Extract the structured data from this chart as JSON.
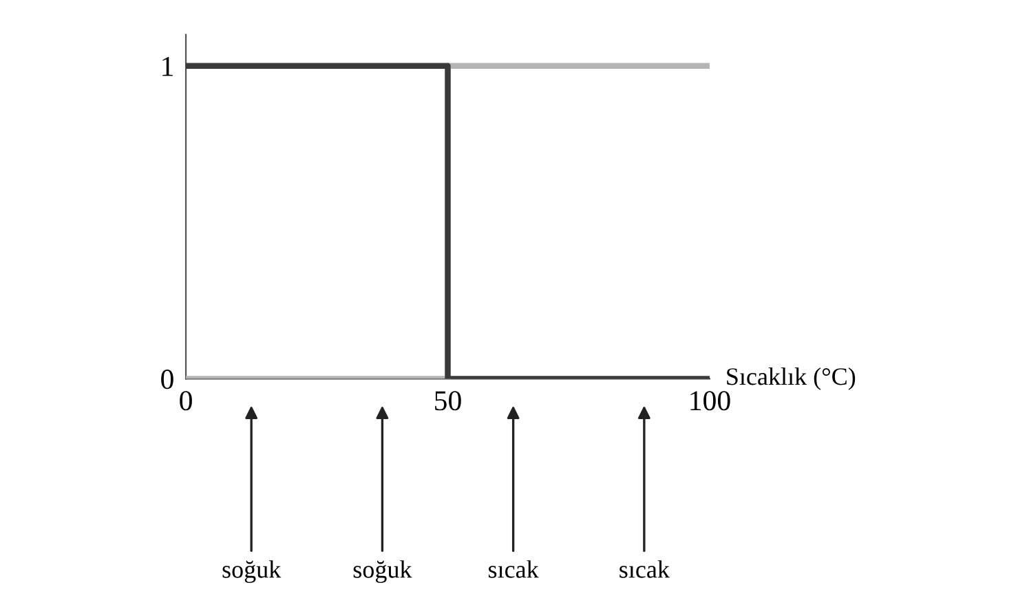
{
  "chart_data": {
    "type": "line",
    "xlabel": "Sıcaklık (°C)",
    "series": [
      {
        "x": [
          0,
          50,
          50,
          100
        ],
        "values": [
          1,
          1,
          0,
          0
        ],
        "color": "#3a3a3a"
      },
      {
        "x": [
          0,
          50,
          50,
          100
        ],
        "values": [
          0,
          0,
          1,
          1
        ],
        "color": "#b4b4b4"
      }
    ],
    "xlim": [
      0,
      100
    ],
    "ylim": [
      0,
      1.1
    ],
    "xticks": [
      0,
      50,
      100
    ],
    "yticks": [
      0,
      1
    ],
    "grid": false,
    "marker": "none",
    "line_style": "solid",
    "annotations": [
      "soğuk",
      "soğuk",
      "sıcak",
      "sıcak"
    ]
  }
}
